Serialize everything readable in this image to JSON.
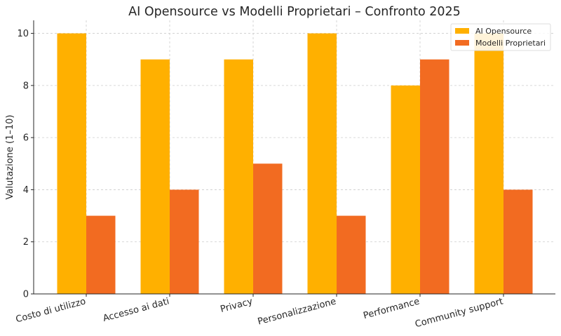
{
  "chart_data": {
    "type": "bar",
    "title": "AI Opensource vs Modelli Proprietari – Confronto 2025",
    "xlabel": "",
    "ylabel": "Valutazione (1–10)",
    "categories": [
      "Costo di utilizzo",
      "Accesso ai dati",
      "Privacy",
      "Personalizzazione",
      "Performance",
      "Community support"
    ],
    "series": [
      {
        "name": "AI Opensource",
        "color": "#FFB000",
        "values": [
          10,
          9,
          9,
          10,
          8,
          10
        ]
      },
      {
        "name": "Modelli Proprietari",
        "color": "#F26B21",
        "values": [
          3,
          4,
          5,
          3,
          9,
          4
        ]
      }
    ],
    "ylim": [
      0,
      10.5
    ],
    "yticks": [
      0,
      2,
      4,
      6,
      8,
      10
    ],
    "grid": true,
    "legend_position": "top-right"
  }
}
